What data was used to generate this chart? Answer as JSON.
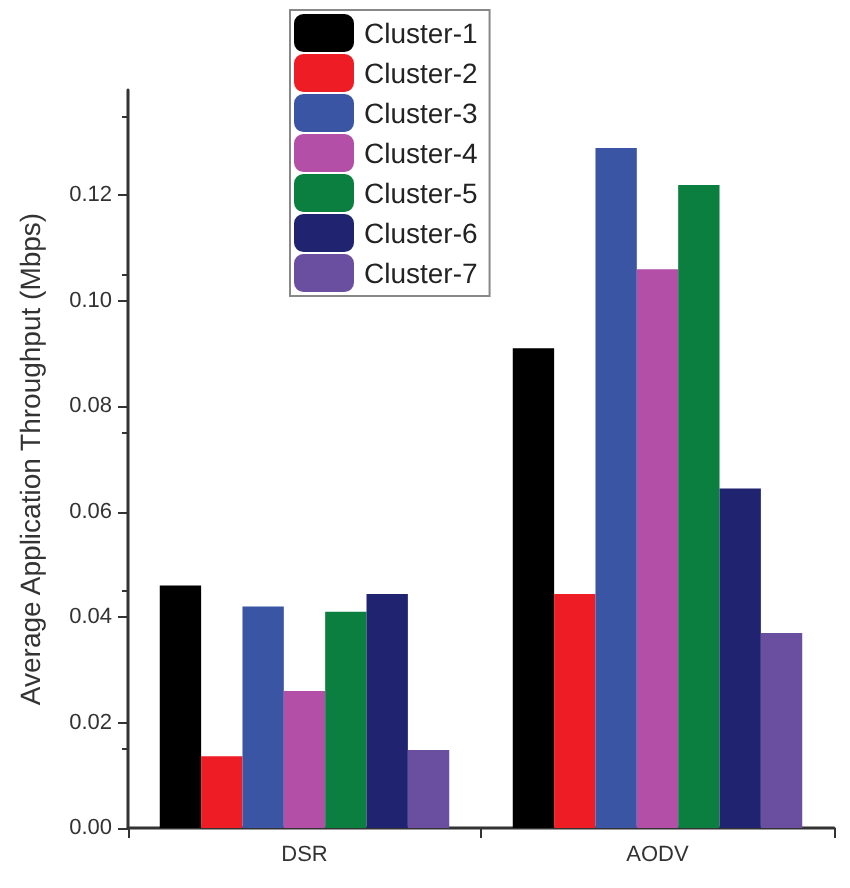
{
  "chart_data": {
    "type": "bar",
    "ylabel": "Average Application Throughput (Mbps)",
    "categories": [
      "DSR",
      "AODV"
    ],
    "series": [
      {
        "name": "Cluster-1",
        "color": "#000000",
        "values": [
          0.046,
          0.091
        ]
      },
      {
        "name": "Cluster-2",
        "color": "#ee1c24",
        "values": [
          0.0136,
          0.0444
        ]
      },
      {
        "name": "Cluster-3",
        "color": "#3a55a4",
        "values": [
          0.042,
          0.129
        ]
      },
      {
        "name": "Cluster-4",
        "color": "#b44fa8",
        "values": [
          0.026,
          0.106
        ]
      },
      {
        "name": "Cluster-5",
        "color": "#0a7f3f",
        "values": [
          0.041,
          0.122
        ]
      },
      {
        "name": "Cluster-6",
        "color": "#1f2370",
        "values": [
          0.0444,
          0.0644
        ]
      },
      {
        "name": "Cluster-7",
        "color": "#6a4fa0",
        "values": [
          0.0148,
          0.037
        ]
      }
    ],
    "ylim": [
      0,
      0.14
    ],
    "yticks": [
      {
        "value": 0,
        "label": "0.00"
      },
      {
        "value": 0.02,
        "label": "0.02"
      },
      {
        "value": 0.04,
        "label": "0.04"
      },
      {
        "value": 0.06,
        "label": "0.06"
      },
      {
        "value": 0.08,
        "label": "0.08"
      },
      {
        "value": 0.1,
        "label": "0.10"
      },
      {
        "value": 0.12,
        "label": "0.12"
      }
    ],
    "grid": false,
    "legend": "top"
  }
}
